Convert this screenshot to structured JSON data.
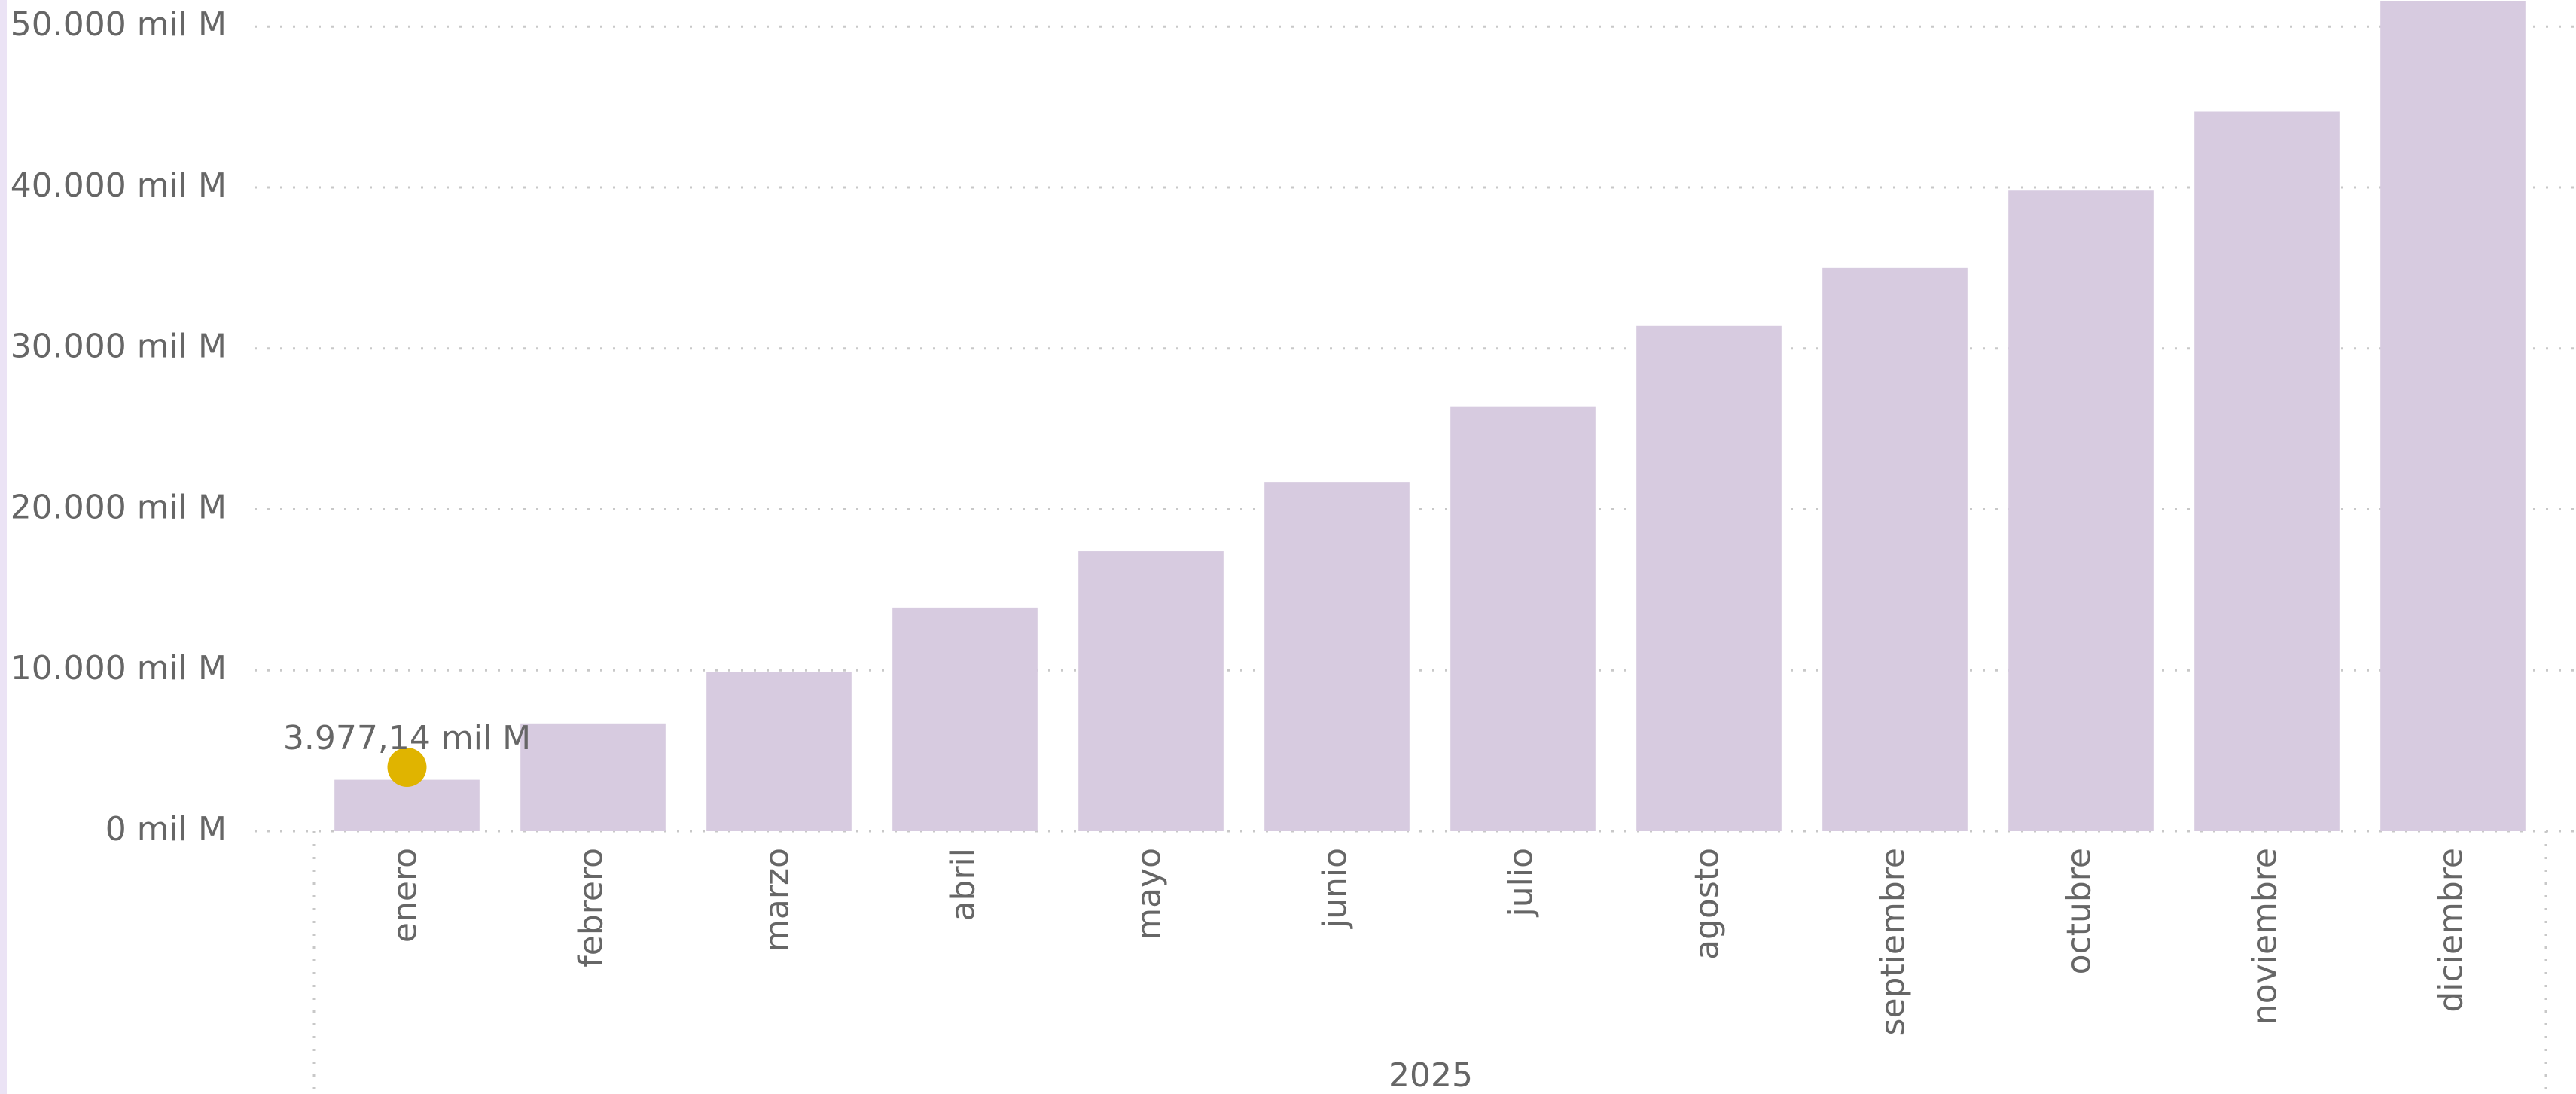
{
  "chart_data": {
    "type": "bar",
    "categories": [
      "enero",
      "febrero",
      "marzo",
      "abril",
      "mayo",
      "junio",
      "julio",
      "agosto",
      "septiembre",
      "octubre",
      "noviembre",
      "diciembre"
    ],
    "x_group_label": "2025",
    "series": [
      {
        "color": "#d7cbe0",
        "values": [
          3200,
          6700,
          9900,
          13900,
          17400,
          21700,
          26400,
          31400,
          35000,
          39800,
          44700,
          51600
        ]
      },
      {
        "type": "marker",
        "color": "#e0b400",
        "values": [
          3977.14,
          null,
          null,
          null,
          null,
          null,
          null,
          null,
          null,
          null,
          null,
          null
        ],
        "value_labels": [
          "3.977,14 mil M",
          null,
          null,
          null,
          null,
          null,
          null,
          null,
          null,
          null,
          null,
          null
        ]
      }
    ],
    "ylim": [
      0,
      51600
    ],
    "yticks": [
      {
        "value": 0,
        "label": "0 mil M"
      },
      {
        "value": 10000,
        "label": "10.000 mil M"
      },
      {
        "value": 20000,
        "label": "20.000 mil M"
      },
      {
        "value": 30000,
        "label": "30.000 mil M"
      },
      {
        "value": 40000,
        "label": "40.000 mil M"
      },
      {
        "value": 50000,
        "label": "50.000 mil M"
      }
    ],
    "grid": true
  }
}
